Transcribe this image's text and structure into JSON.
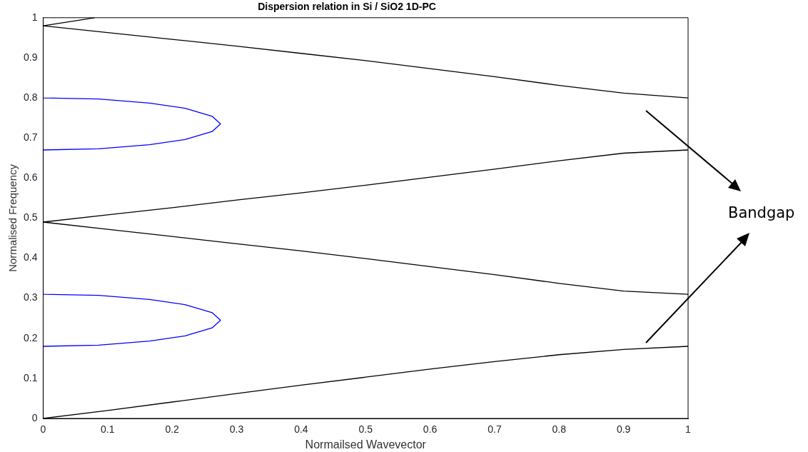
{
  "chart_data": {
    "type": "line",
    "title": "Dispersion relation in Si / SiO2 1D-PC",
    "xlabel": "Normailsed Wavevector",
    "ylabel": "Normalised Frequency",
    "xlim": [
      0,
      1
    ],
    "ylim": [
      0,
      1
    ],
    "xticks": [
      0,
      0.1,
      0.2,
      0.3,
      0.4,
      0.5,
      0.6,
      0.7,
      0.8,
      0.9,
      1
    ],
    "yticks": [
      0,
      0.1,
      0.2,
      0.3,
      0.4,
      0.5,
      0.6,
      0.7,
      0.8,
      0.9,
      1
    ],
    "grid": false,
    "legend": false,
    "marker": "none",
    "line_style": "solid",
    "annotations": [
      "Bandgap"
    ],
    "series": [
      {
        "color": "#000000",
        "x": [
          0,
          0.1,
          0.2,
          0.3,
          0.4,
          0.5,
          0.6,
          0.7,
          0.8,
          0.9,
          1
        ],
        "values": [
          0,
          0.02,
          0.041,
          0.062,
          0.083,
          0.103,
          0.123,
          0.142,
          0.159,
          0.172,
          0.18
        ]
      },
      {
        "color": "#000000",
        "x": [
          0,
          0.1,
          0.2,
          0.3,
          0.4,
          0.5,
          0.6,
          0.7,
          0.8,
          0.9,
          1
        ],
        "values": [
          0.49,
          0.472,
          0.454,
          0.436,
          0.418,
          0.399,
          0.379,
          0.359,
          0.337,
          0.318,
          0.31
        ]
      },
      {
        "color": "#000000",
        "x": [
          0,
          0.1,
          0.2,
          0.3,
          0.4,
          0.5,
          0.6,
          0.7,
          0.8,
          0.9,
          1
        ],
        "values": [
          0.49,
          0.508,
          0.526,
          0.545,
          0.563,
          0.582,
          0.602,
          0.622,
          0.643,
          0.662,
          0.67
        ]
      },
      {
        "color": "#000000",
        "x": [
          0,
          0.1,
          0.2,
          0.3,
          0.4,
          0.5,
          0.6,
          0.7,
          0.8,
          0.9,
          1
        ],
        "values": [
          0.98,
          0.963,
          0.946,
          0.929,
          0.911,
          0.893,
          0.873,
          0.853,
          0.831,
          0.812,
          0.8
        ]
      },
      {
        "color": "#000000",
        "x": [
          0,
          0.08
        ],
        "values": [
          0.98,
          1
        ]
      },
      {
        "color": "#0000ff",
        "x": [
          0,
          0,
          0.086,
          0.165,
          0.22,
          0.262,
          0.275,
          0.262,
          0.22,
          0.165,
          0.086,
          0,
          0,
          0,
          0.086,
          0.165,
          0.22,
          0.262,
          0.275,
          0.262,
          0.22,
          0.165,
          0.086,
          0,
          0
        ],
        "values": [
          0,
          0.18,
          0.183,
          0.193,
          0.206,
          0.226,
          0.245,
          0.264,
          0.284,
          0.297,
          0.307,
          0.31,
          0.67,
          0.67,
          0.673,
          0.683,
          0.696,
          0.716,
          0.735,
          0.754,
          0.774,
          0.787,
          0.797,
          0.8,
          1
        ]
      }
    ]
  }
}
